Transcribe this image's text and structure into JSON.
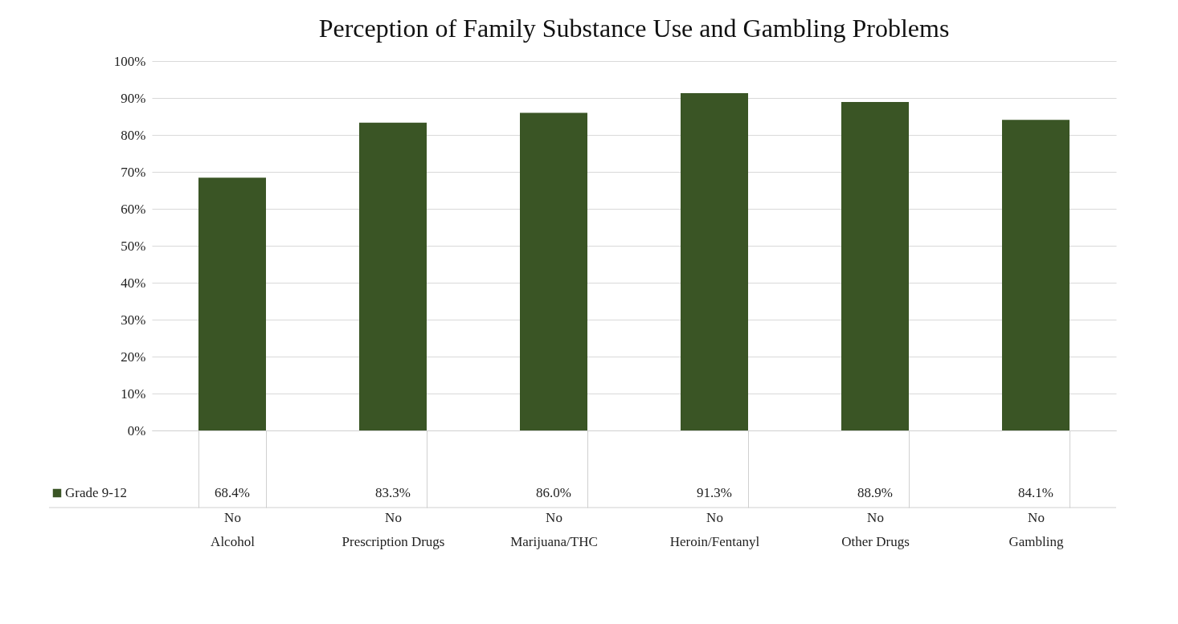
{
  "chart_data": {
    "type": "bar",
    "title": "Perception of Family Substance Use and Gambling Problems",
    "categories": [
      "No\nAlcohol",
      "No\nPrescription Drugs",
      "No\nMarijuana/THC",
      "No\nHeroin/Fentanyl",
      "No\nOther Drugs",
      "No\nGambling"
    ],
    "series": [
      {
        "name": "Grade  9-12",
        "color": "#3a5525",
        "values": [
          68.4,
          83.3,
          86.0,
          91.3,
          88.9,
          84.1
        ],
        "value_labels": [
          "68.4%",
          "83.3%",
          "86.0%",
          "91.3%",
          "88.9%",
          "84.1%"
        ]
      }
    ],
    "ylim": [
      0,
      100
    ],
    "yticks": [
      {
        "value": 0,
        "label": "0%"
      },
      {
        "value": 10,
        "label": "10%"
      },
      {
        "value": 20,
        "label": "20%"
      },
      {
        "value": 30,
        "label": "30%"
      },
      {
        "value": 40,
        "label": "40%"
      },
      {
        "value": 50,
        "label": "50%"
      },
      {
        "value": 60,
        "label": "60%"
      },
      {
        "value": 70,
        "label": "70%"
      },
      {
        "value": 80,
        "label": "80%"
      },
      {
        "value": 90,
        "label": "90%"
      },
      {
        "value": 100,
        "label": "100%"
      }
    ],
    "grid": "y",
    "legend": "bottom left"
  }
}
